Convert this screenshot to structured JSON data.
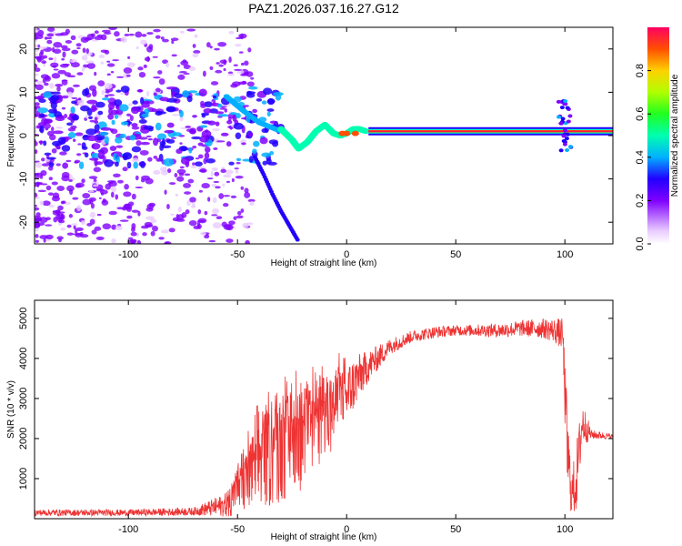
{
  "title": "PAZ1.2026.037.16.27.G12",
  "chart_data": [
    {
      "type": "heatmap",
      "name": "spectrogram",
      "xlabel": "Height of straight line (km)",
      "ylabel": "Frequency (Hz)",
      "xlim": [
        -143,
        122
      ],
      "ylim": [
        -25,
        25
      ],
      "xticks": [
        -100,
        -50,
        0,
        50,
        100
      ],
      "yticks": [
        -20,
        -10,
        0,
        10,
        20
      ],
      "colorbar": {
        "label": "Normalized spectral amplitude",
        "range": [
          0,
          1
        ],
        "ticks": [
          0.0,
          0.2,
          0.4,
          0.6,
          0.8
        ]
      },
      "features": {
        "main_trace_segments": [
          {
            "x": [
              -30,
              -25,
              -22,
              -18,
              -14,
              -10,
              -6,
              -3,
              0,
              3,
              6,
              9
            ],
            "y": [
              1.5,
              -1.0,
              -3.0,
              -1.5,
              1.0,
              2.5,
              0.5,
              0.0,
              0.5,
              1.5,
              1.5,
              1.0
            ]
          }
        ],
        "flat_band": {
          "x": [
            10,
            122
          ],
          "y": 1.0
        },
        "diagonal_ridge": {
          "x": [
            -55,
            -48,
            -40,
            -35,
            -30
          ],
          "y": [
            9.0,
            6.0,
            3.0,
            2.0,
            1.0
          ]
        },
        "lower_arc": {
          "x": [
            -42,
            -38,
            -34,
            -30,
            -26,
            -22
          ],
          "y": [
            -5.0,
            -9.0,
            -13.5,
            -17.5,
            -21.0,
            -24.5
          ]
        }
      }
    },
    {
      "type": "line",
      "name": "snr",
      "xlabel": "Height of straight line (km)",
      "ylabel": "SNR (10 * v/v)",
      "xlim": [
        -143,
        122
      ],
      "ylim": [
        0,
        5450
      ],
      "xticks": [
        -100,
        -50,
        0,
        50,
        100
      ],
      "yticks": [
        1000,
        2000,
        3000,
        4000,
        5000
      ],
      "color": "#ee3333",
      "envelope_x": [
        -143,
        -100,
        -70,
        -55,
        -48,
        -40,
        -30,
        -20,
        -12,
        -5,
        0,
        5,
        10,
        20,
        30,
        40,
        50,
        60,
        70,
        80,
        90,
        95,
        99,
        101,
        103,
        105,
        108,
        112,
        122
      ],
      "envelope_mean": [
        150,
        150,
        180,
        350,
        800,
        1400,
        1700,
        2000,
        2400,
        2800,
        3100,
        3500,
        3800,
        4300,
        4550,
        4650,
        4700,
        4700,
        4700,
        4750,
        4750,
        4700,
        4600,
        1800,
        600,
        900,
        2400,
        2100,
        2050
      ],
      "envelope_amp": [
        80,
        80,
        100,
        300,
        700,
        1200,
        1300,
        1300,
        1100,
        1000,
        800,
        600,
        400,
        200,
        150,
        150,
        130,
        150,
        180,
        200,
        250,
        300,
        400,
        1200,
        500,
        900,
        600,
        120,
        60
      ]
    }
  ]
}
